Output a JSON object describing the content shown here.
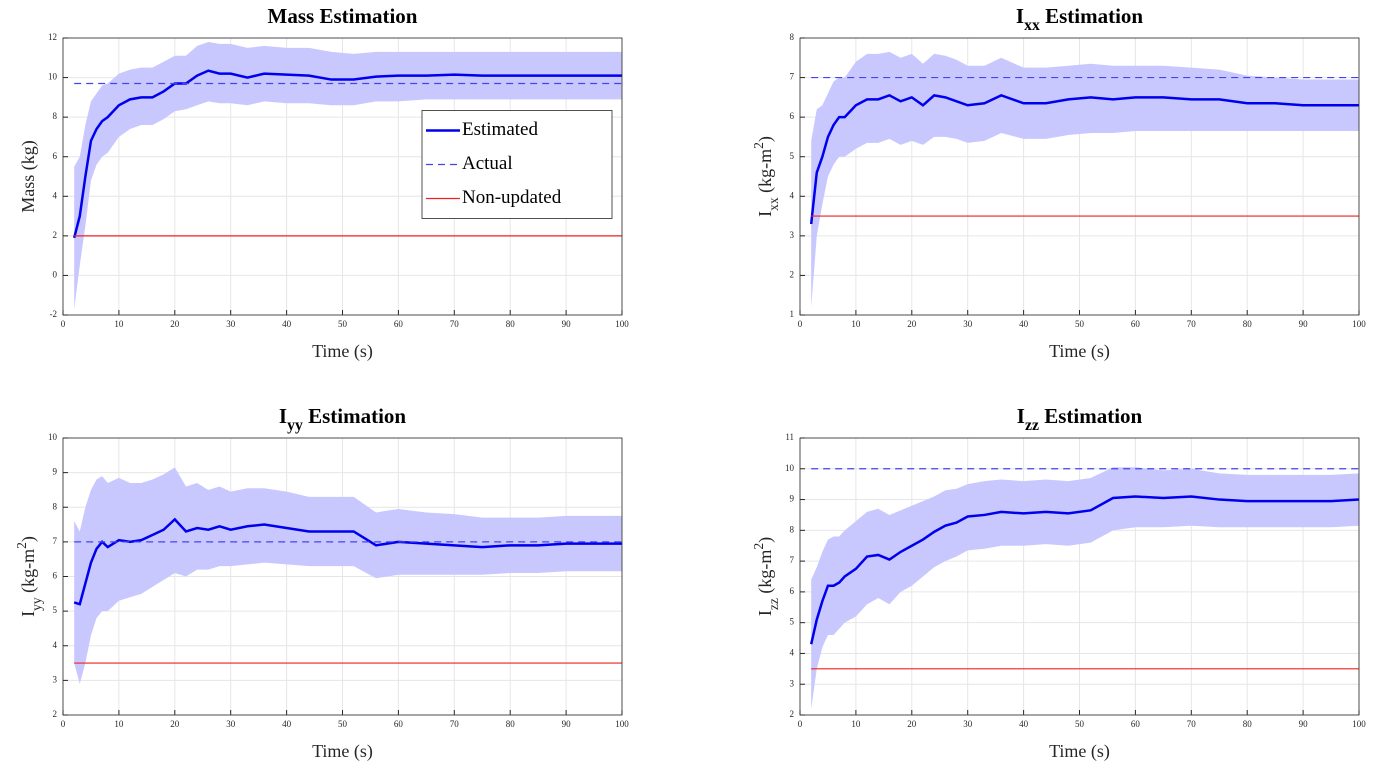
{
  "chart_data": [
    {
      "type": "line",
      "title": [
        {
          "text": "Mass Estimation"
        }
      ],
      "xlabel": [
        {
          "text": "Time (s)"
        }
      ],
      "ylabel": [
        {
          "text": "Mass (kg)"
        }
      ],
      "xlim": [
        0,
        100
      ],
      "xticks": [
        0,
        10,
        20,
        30,
        40,
        50,
        60,
        70,
        80,
        90,
        100
      ],
      "ylim": [
        -2,
        12
      ],
      "yticks": [
        -2,
        0,
        2,
        4,
        6,
        8,
        10,
        12
      ],
      "grid": true,
      "legend": "east",
      "x": [
        2,
        3,
        4,
        5,
        6,
        7,
        8,
        10,
        12,
        14,
        16,
        18,
        20,
        22,
        24,
        26,
        28,
        30,
        33,
        36,
        40,
        44,
        48,
        52,
        56,
        60,
        65,
        70,
        75,
        80,
        85,
        90,
        95,
        100
      ],
      "series": [
        {
          "name": "Estimated",
          "color": "#0000ee",
          "style": "solid",
          "values": [
            1.9,
            3.0,
            5.0,
            6.8,
            7.4,
            7.8,
            8.0,
            8.6,
            8.9,
            9.0,
            9.0,
            9.3,
            9.7,
            9.7,
            10.1,
            10.35,
            10.2,
            10.2,
            10.0,
            10.2,
            10.15,
            10.1,
            9.9,
            9.9,
            10.05,
            10.1,
            10.1,
            10.15,
            10.1,
            10.1,
            10.1,
            10.1,
            10.1,
            10.1
          ],
          "band": {
            "color": "#c8c8ff",
            "lower": [
              -1.7,
              0.5,
              2.5,
              4.8,
              5.6,
              6.0,
              6.2,
              7.0,
              7.4,
              7.6,
              7.6,
              7.9,
              8.3,
              8.4,
              8.6,
              8.8,
              8.7,
              8.7,
              8.6,
              8.8,
              8.7,
              8.7,
              8.6,
              8.6,
              8.8,
              8.8,
              8.9,
              8.9,
              8.9,
              8.9,
              8.9,
              8.9,
              8.9,
              8.9
            ],
            "upper": [
              5.5,
              6.0,
              7.6,
              8.8,
              9.2,
              9.6,
              9.7,
              10.2,
              10.4,
              10.5,
              10.5,
              10.8,
              11.1,
              11.1,
              11.6,
              11.8,
              11.7,
              11.7,
              11.5,
              11.6,
              11.5,
              11.5,
              11.3,
              11.2,
              11.3,
              11.3,
              11.3,
              11.3,
              11.3,
              11.3,
              11.3,
              11.3,
              11.3,
              11.3
            ]
          }
        },
        {
          "name": "Actual",
          "color": "#4444ee",
          "style": "dashed",
          "x": [
            2,
            100
          ],
          "values": [
            9.7,
            9.7
          ]
        },
        {
          "name": "Non-updated",
          "color": "#ee2222",
          "style": "solid",
          "x": [
            2,
            100
          ],
          "values": [
            2,
            2
          ]
        }
      ]
    },
    {
      "type": "line",
      "title": [
        {
          "text": "I"
        },
        {
          "text": "xx",
          "baseline": "sub"
        },
        {
          "text": " Estimation"
        }
      ],
      "xlabel": [
        {
          "text": "Time (s)"
        }
      ],
      "ylabel": [
        {
          "text": "I"
        },
        {
          "text": "xx",
          "baseline": "sub"
        },
        {
          "text": " (kg-m"
        },
        {
          "text": "2",
          "baseline": "super"
        },
        {
          "text": ")"
        }
      ],
      "xlim": [
        0,
        100
      ],
      "xticks": [
        0,
        10,
        20,
        30,
        40,
        50,
        60,
        70,
        80,
        90,
        100
      ],
      "ylim": [
        1,
        8
      ],
      "yticks": [
        1,
        2,
        3,
        4,
        5,
        6,
        7,
        8
      ],
      "grid": true,
      "x": [
        2,
        3,
        4,
        5,
        6,
        7,
        8,
        10,
        12,
        14,
        16,
        18,
        20,
        22,
        24,
        26,
        28,
        30,
        33,
        36,
        40,
        44,
        48,
        52,
        56,
        60,
        65,
        70,
        75,
        80,
        85,
        90,
        95,
        100
      ],
      "series": [
        {
          "color": "#0000ee",
          "style": "solid",
          "values": [
            3.3,
            4.6,
            5.0,
            5.5,
            5.8,
            6.0,
            6.0,
            6.3,
            6.45,
            6.45,
            6.55,
            6.4,
            6.5,
            6.3,
            6.55,
            6.5,
            6.4,
            6.3,
            6.35,
            6.55,
            6.35,
            6.35,
            6.45,
            6.5,
            6.45,
            6.5,
            6.5,
            6.45,
            6.45,
            6.35,
            6.35,
            6.3,
            6.3,
            6.3
          ],
          "band": {
            "color": "#c8c8ff",
            "lower": [
              1.2,
              3.0,
              3.8,
              4.5,
              4.8,
              5.0,
              5.0,
              5.2,
              5.35,
              5.35,
              5.45,
              5.3,
              5.4,
              5.3,
              5.5,
              5.5,
              5.45,
              5.35,
              5.4,
              5.6,
              5.45,
              5.45,
              5.55,
              5.6,
              5.6,
              5.65,
              5.65,
              5.65,
              5.65,
              5.65,
              5.65,
              5.65,
              5.65,
              5.65
            ],
            "upper": [
              5.4,
              6.2,
              6.3,
              6.6,
              6.9,
              7.0,
              7.0,
              7.4,
              7.6,
              7.6,
              7.65,
              7.5,
              7.6,
              7.35,
              7.6,
              7.55,
              7.45,
              7.3,
              7.3,
              7.5,
              7.25,
              7.25,
              7.3,
              7.35,
              7.3,
              7.3,
              7.3,
              7.25,
              7.2,
              7.05,
              7.0,
              6.95,
              6.95,
              6.95
            ]
          }
        },
        {
          "color": "#4444ee",
          "style": "dashed",
          "x": [
            2,
            100
          ],
          "values": [
            7,
            7
          ]
        },
        {
          "color": "#ee2222",
          "style": "solid",
          "x": [
            2,
            100
          ],
          "values": [
            3.5,
            3.5
          ]
        }
      ]
    },
    {
      "type": "line",
      "title": [
        {
          "text": "I"
        },
        {
          "text": "yy",
          "baseline": "sub"
        },
        {
          "text": " Estimation"
        }
      ],
      "xlabel": [
        {
          "text": "Time (s)"
        }
      ],
      "ylabel": [
        {
          "text": "I"
        },
        {
          "text": "yy",
          "baseline": "sub"
        },
        {
          "text": " (kg-m"
        },
        {
          "text": "2",
          "baseline": "super"
        },
        {
          "text": ")"
        }
      ],
      "xlim": [
        0,
        100
      ],
      "xticks": [
        0,
        10,
        20,
        30,
        40,
        50,
        60,
        70,
        80,
        90,
        100
      ],
      "ylim": [
        2,
        10
      ],
      "yticks": [
        2,
        3,
        4,
        5,
        6,
        7,
        8,
        9,
        10
      ],
      "grid": true,
      "x": [
        2,
        3,
        4,
        5,
        6,
        7,
        8,
        10,
        12,
        14,
        16,
        18,
        20,
        22,
        24,
        26,
        28,
        30,
        33,
        36,
        40,
        44,
        48,
        52,
        56,
        60,
        65,
        70,
        75,
        80,
        85,
        90,
        95,
        100
      ],
      "series": [
        {
          "color": "#0000ee",
          "style": "solid",
          "values": [
            5.25,
            5.2,
            5.8,
            6.4,
            6.8,
            7.0,
            6.85,
            7.05,
            7.0,
            7.05,
            7.2,
            7.35,
            7.65,
            7.3,
            7.4,
            7.35,
            7.45,
            7.35,
            7.45,
            7.5,
            7.4,
            7.3,
            7.3,
            7.3,
            6.9,
            7.0,
            6.95,
            6.9,
            6.85,
            6.9,
            6.9,
            6.95,
            6.95,
            6.95
          ],
          "band": {
            "color": "#c8c8ff",
            "lower": [
              3.5,
              2.9,
              3.5,
              4.3,
              4.8,
              5.0,
              5.0,
              5.3,
              5.4,
              5.5,
              5.7,
              5.9,
              6.1,
              6.0,
              6.2,
              6.2,
              6.3,
              6.3,
              6.35,
              6.4,
              6.35,
              6.3,
              6.3,
              6.3,
              5.95,
              6.05,
              6.05,
              6.05,
              6.05,
              6.1,
              6.1,
              6.15,
              6.15,
              6.15
            ],
            "upper": [
              7.6,
              7.3,
              8.0,
              8.5,
              8.8,
              8.9,
              8.7,
              8.85,
              8.7,
              8.7,
              8.8,
              8.95,
              9.15,
              8.6,
              8.7,
              8.5,
              8.6,
              8.45,
              8.55,
              8.55,
              8.45,
              8.3,
              8.3,
              8.3,
              7.85,
              7.95,
              7.85,
              7.8,
              7.7,
              7.7,
              7.7,
              7.75,
              7.75,
              7.75
            ]
          }
        },
        {
          "color": "#4444ee",
          "style": "dashed",
          "x": [
            2,
            100
          ],
          "values": [
            7,
            7
          ]
        },
        {
          "color": "#ee2222",
          "style": "solid",
          "x": [
            2,
            100
          ],
          "values": [
            3.5,
            3.5
          ]
        }
      ]
    },
    {
      "type": "line",
      "title": [
        {
          "text": "I"
        },
        {
          "text": "zz",
          "baseline": "sub"
        },
        {
          "text": " Estimation"
        }
      ],
      "xlabel": [
        {
          "text": "Time (s)"
        }
      ],
      "ylabel": [
        {
          "text": "I"
        },
        {
          "text": "zz",
          "baseline": "sub"
        },
        {
          "text": " (kg-m"
        },
        {
          "text": "2",
          "baseline": "super"
        },
        {
          "text": ")"
        }
      ],
      "xlim": [
        0,
        100
      ],
      "xticks": [
        0,
        10,
        20,
        30,
        40,
        50,
        60,
        70,
        80,
        90,
        100
      ],
      "ylim": [
        2,
        11
      ],
      "yticks": [
        2,
        3,
        4,
        5,
        6,
        7,
        8,
        9,
        10,
        11
      ],
      "grid": true,
      "x": [
        2,
        3,
        4,
        5,
        6,
        7,
        8,
        10,
        12,
        14,
        16,
        18,
        20,
        22,
        24,
        26,
        28,
        30,
        33,
        36,
        40,
        44,
        48,
        52,
        56,
        60,
        65,
        70,
        75,
        80,
        85,
        90,
        95,
        100
      ],
      "series": [
        {
          "color": "#0000ee",
          "style": "solid",
          "values": [
            4.3,
            5.1,
            5.7,
            6.2,
            6.2,
            6.3,
            6.5,
            6.75,
            7.15,
            7.2,
            7.05,
            7.3,
            7.5,
            7.7,
            7.95,
            8.15,
            8.25,
            8.45,
            8.5,
            8.6,
            8.55,
            8.6,
            8.55,
            8.65,
            9.05,
            9.1,
            9.05,
            9.1,
            9.0,
            8.95,
            8.95,
            8.95,
            8.95,
            9.0
          ],
          "band": {
            "color": "#c8c8ff",
            "lower": [
              2.2,
              3.5,
              4.2,
              4.6,
              4.6,
              4.8,
              5.0,
              5.2,
              5.6,
              5.8,
              5.6,
              6.0,
              6.2,
              6.5,
              6.8,
              7.0,
              7.15,
              7.35,
              7.4,
              7.5,
              7.5,
              7.55,
              7.5,
              7.6,
              8.0,
              8.1,
              8.1,
              8.15,
              8.1,
              8.1,
              8.1,
              8.1,
              8.1,
              8.15
            ],
            "upper": [
              6.4,
              6.8,
              7.3,
              7.7,
              7.8,
              7.8,
              8.0,
              8.3,
              8.6,
              8.7,
              8.5,
              8.65,
              8.8,
              8.95,
              9.1,
              9.3,
              9.35,
              9.5,
              9.6,
              9.65,
              9.6,
              9.65,
              9.6,
              9.7,
              10.05,
              10.05,
              9.95,
              10.0,
              9.85,
              9.8,
              9.8,
              9.8,
              9.8,
              9.85
            ]
          }
        },
        {
          "color": "#4444ee",
          "style": "dashed",
          "x": [
            2,
            100
          ],
          "values": [
            10,
            10
          ]
        },
        {
          "color": "#ee2222",
          "style": "solid",
          "x": [
            2,
            100
          ],
          "values": [
            3.5,
            3.5
          ]
        }
      ]
    }
  ]
}
